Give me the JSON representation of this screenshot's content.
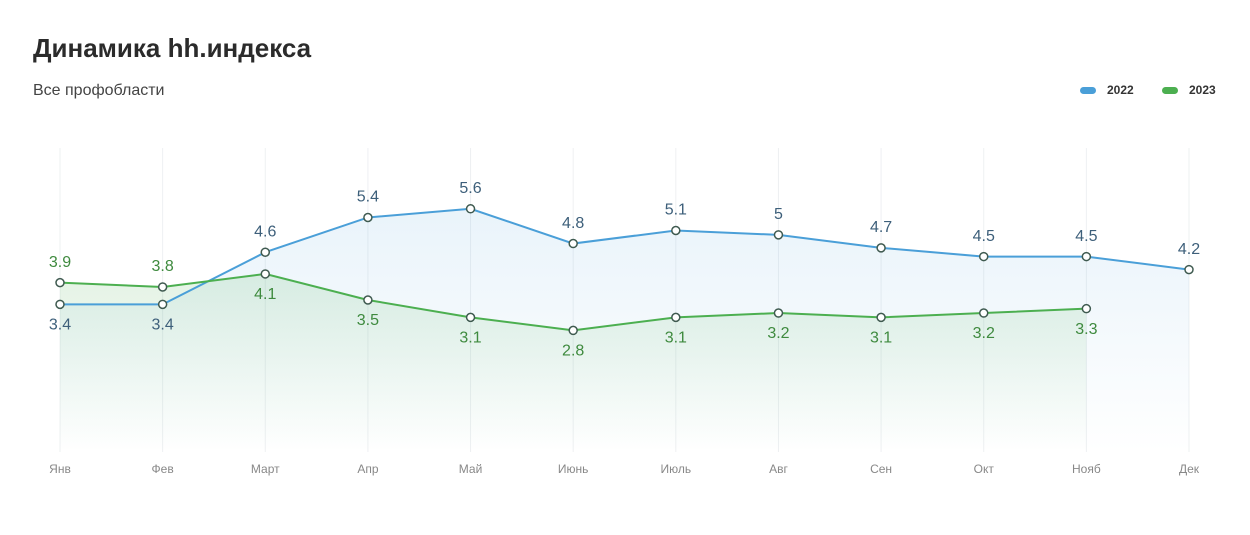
{
  "chart_data": {
    "type": "line",
    "title": "Динамика hh.индекса",
    "subtitle": "Все профобласти",
    "categories": [
      "Янв",
      "Фев",
      "Март",
      "Апр",
      "Май",
      "Июнь",
      "Июль",
      "Авг",
      "Сен",
      "Окт",
      "Нояб",
      "Дек"
    ],
    "series": [
      {
        "name": "2022",
        "color": "#4a9fd8",
        "label_color": "#3d5f7a",
        "values": [
          3.4,
          3.4,
          4.6,
          5.4,
          5.6,
          4.8,
          5.1,
          5,
          4.7,
          4.5,
          4.5,
          4.2
        ]
      },
      {
        "name": "2023",
        "color": "#4caf50",
        "label_color": "#3e8a3e",
        "values": [
          3.9,
          3.8,
          4.1,
          3.5,
          3.1,
          2.8,
          3.1,
          3.2,
          3.1,
          3.2,
          3.3,
          null
        ]
      }
    ],
    "ylim": [
      0,
      7
    ],
    "grid": true,
    "legend": "top-right"
  }
}
